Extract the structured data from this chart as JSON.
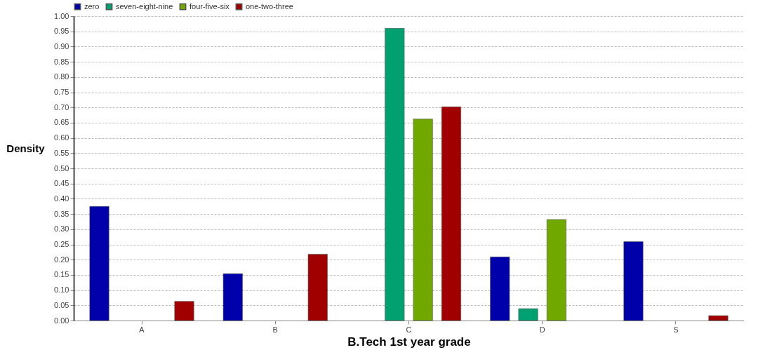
{
  "chart_data": {
    "type": "bar",
    "xlabel": "B.Tech 1st year grade",
    "ylabel": "Density",
    "categories": [
      "A",
      "B",
      "C",
      "D",
      "S"
    ],
    "series": [
      {
        "name": "zero",
        "color": "#0000aa",
        "values": [
          0.375,
          0.154,
          null,
          0.209,
          0.259
        ]
      },
      {
        "name": "seven-eight-nine",
        "color": "#00a070",
        "values": [
          null,
          null,
          0.96,
          0.039,
          null
        ]
      },
      {
        "name": "four-five-six",
        "color": "#70a800",
        "values": [
          null,
          null,
          0.662,
          0.332,
          null
        ]
      },
      {
        "name": "one-two-three",
        "color": "#a00000",
        "values": [
          0.063,
          0.218,
          0.702,
          null,
          0.016
        ]
      }
    ],
    "ylim": [
      0,
      1.0
    ],
    "yticks": [
      {
        "value": 0,
        "label": "0.00"
      },
      {
        "value": 0.05,
        "label": "0.05"
      },
      {
        "value": 0.1,
        "label": "0.10"
      },
      {
        "value": 0.15,
        "label": "0.15"
      },
      {
        "value": 0.2,
        "label": "0.20"
      },
      {
        "value": 0.25,
        "label": "0.25"
      },
      {
        "value": 0.3,
        "label": "0.30"
      },
      {
        "value": 0.35,
        "label": "0.35"
      },
      {
        "value": 0.4,
        "label": "0.40"
      },
      {
        "value": 0.45,
        "label": "0.45"
      },
      {
        "value": 0.5,
        "label": "0.50"
      },
      {
        "value": 0.55,
        "label": "0.55"
      },
      {
        "value": 0.6,
        "label": "0.60"
      },
      {
        "value": 0.65,
        "label": "0.65"
      },
      {
        "value": 0.7,
        "label": "0.70"
      },
      {
        "value": 0.75,
        "label": "0.75"
      },
      {
        "value": 0.8,
        "label": "0.80"
      },
      {
        "value": 0.85,
        "label": "0.85"
      },
      {
        "value": 0.9,
        "label": "0.90"
      },
      {
        "value": 0.95,
        "label": "0.95"
      },
      {
        "value": 1.0,
        "label": "1.00"
      }
    ],
    "grid": "y",
    "legend": "top left"
  }
}
